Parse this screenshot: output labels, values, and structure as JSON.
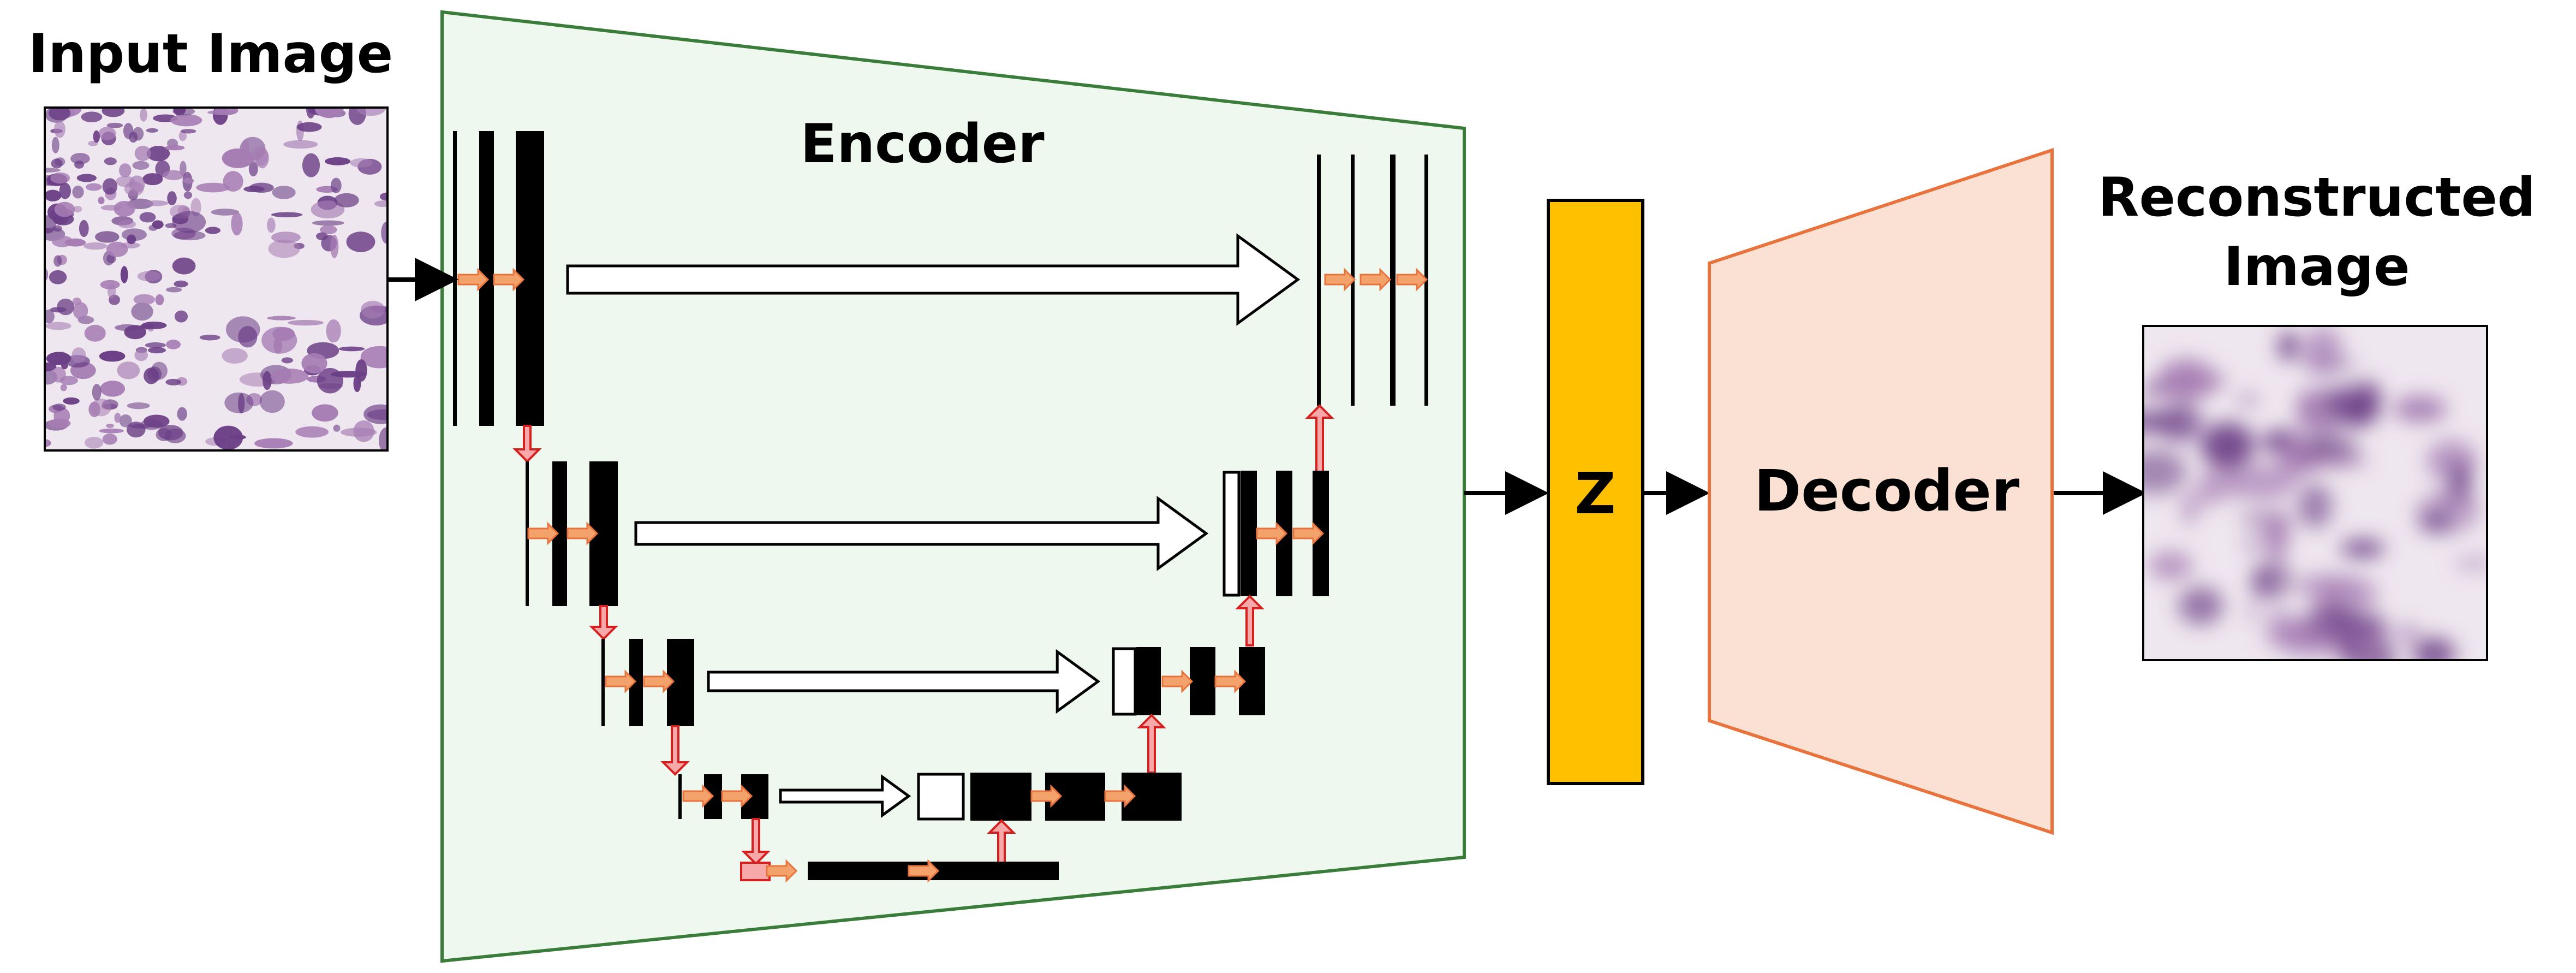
{
  "labels": {
    "input_image": "Input Image",
    "encoder": "Encoder",
    "latent": "Z",
    "decoder": "Decoder",
    "reconstructed_line1": "Reconstructed",
    "reconstructed_line2": "Image"
  },
  "colors": {
    "encoder_fill": "#eef8ee",
    "encoder_stroke": "#3a7d3a",
    "latent_fill": "#ffc000",
    "decoder_fill": "#fbe1d3",
    "decoder_stroke": "#e8733d",
    "skip_arrow_fill": "#ffffff",
    "skip_arrow_stroke": "#000000",
    "conv_arrow_fill": "#f3a26b",
    "conv_arrow_stroke": "#e8733d",
    "down_up_arrow_fill": "#f7a8a8",
    "down_up_arrow_stroke": "#d62020",
    "feature_map": "#000000",
    "tissue_light": "#efe7ef",
    "tissue_dark": "#6b3f86",
    "tissue_mid": "#a57cb3"
  },
  "icons": {
    "skip_connection": "hollow-right-arrow",
    "conv_step": "orange-right-arrow",
    "downsample": "red-down-arrow",
    "upsample": "red-up-arrow",
    "flow": "black-right-arrow"
  },
  "images": {
    "input": "histology-tissue-patch",
    "reconstructed": "blurred-histology-tissue-patch"
  }
}
